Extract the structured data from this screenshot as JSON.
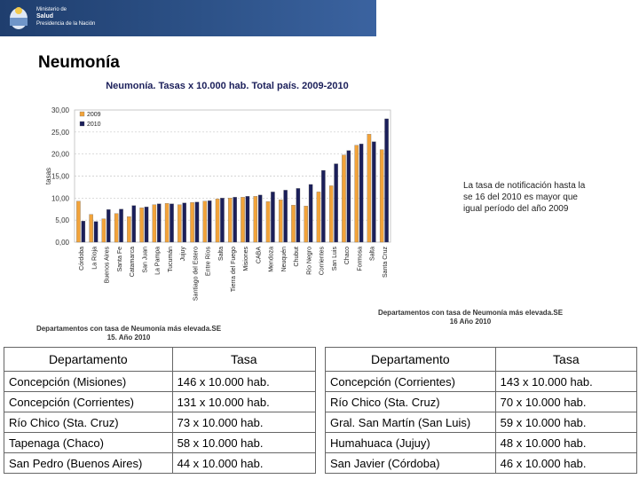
{
  "header": {
    "ministry_line1": "Ministerio de",
    "ministry_line2": "Salud",
    "ministry_line3": "Presidencia de la Nación"
  },
  "slide_title": "Neumonía",
  "chart_data": {
    "type": "bar",
    "title": "Neumonía. Tasas x 10.000 hab. Total país. 2009-2010",
    "ylabel": "tasas",
    "xlabel": "",
    "ylim": [
      0,
      30
    ],
    "yticks": [
      "0,00",
      "5,00",
      "10,00",
      "15,00",
      "20,00",
      "25,00",
      "30,00"
    ],
    "legend_position": "top-left",
    "categories": [
      "Córdoba",
      "La Rioja",
      "Buenos Aires",
      "Santa Fe",
      "Catamarca",
      "San Juan",
      "La Pampa",
      "Tucumán",
      "Jujuy",
      "Santiago del Estero",
      "Entre Ríos",
      "Salta",
      "Tierra del Fuego",
      "Misiones",
      "CABA",
      "Mendoza",
      "Neuquén",
      "Chubut",
      "Río Negro",
      "Corrientes",
      "San Luis",
      "Chaco",
      "Formosa",
      "Salta",
      "Santa Cruz"
    ],
    "series": [
      {
        "name": "2009",
        "color": "#f2a33a",
        "values": [
          9.3,
          6.3,
          5.3,
          6.5,
          5.8,
          7.8,
          8.5,
          8.8,
          8.5,
          9.0,
          9.3,
          9.8,
          10.0,
          10.2,
          10.4,
          9.2,
          9.6,
          8.4,
          8.2,
          11.4,
          12.8,
          19.8,
          22.0,
          24.5,
          21.0
        ]
      },
      {
        "name": "2010",
        "color": "#1b1f5a",
        "values": [
          4.8,
          4.7,
          7.4,
          7.5,
          8.3,
          8.0,
          8.7,
          8.7,
          8.9,
          9.1,
          9.4,
          10.0,
          10.2,
          10.4,
          10.7,
          11.4,
          11.8,
          12.2,
          13.1,
          16.3,
          17.8,
          20.8,
          22.3,
          22.8,
          28.0
        ]
      }
    ],
    "annotation": "La tasa de notificación hasta la se 16 del 2010 es mayor que igual período del año 2009"
  },
  "left_table": {
    "caption": "Departamentos con tasa de Neumonía más elevada.SE 15. Año 2010",
    "headers": [
      "Departamento",
      "Tasa"
    ],
    "rows": [
      [
        "Concepción (Misiones)",
        "146 x 10.000 hab."
      ],
      [
        "Concepción (Corrientes)",
        "131 x 10.000 hab."
      ],
      [
        "Río Chico (Sta. Cruz)",
        "73 x 10.000 hab."
      ],
      [
        "Tapenaga (Chaco)",
        "58 x 10.000 hab."
      ],
      [
        "San Pedro (Buenos Aires)",
        "44 x 10.000 hab."
      ]
    ]
  },
  "right_table": {
    "caption": "Departamentos con tasa de Neumonía más elevada.SE 16 Año 2010",
    "headers": [
      "Departamento",
      "Tasa"
    ],
    "rows": [
      [
        "Concepción (Corrientes)",
        "143 x 10.000 hab."
      ],
      [
        "Río Chico (Sta. Cruz)",
        "70 x 10.000 hab."
      ],
      [
        "Gral. San Martín (San Luis)",
        "59 x 10.000 hab."
      ],
      [
        "Humahuaca (Jujuy)",
        "48 x 10.000 hab."
      ],
      [
        "San Javier (Córdoba)",
        "46 x 10.000 hab."
      ]
    ]
  }
}
